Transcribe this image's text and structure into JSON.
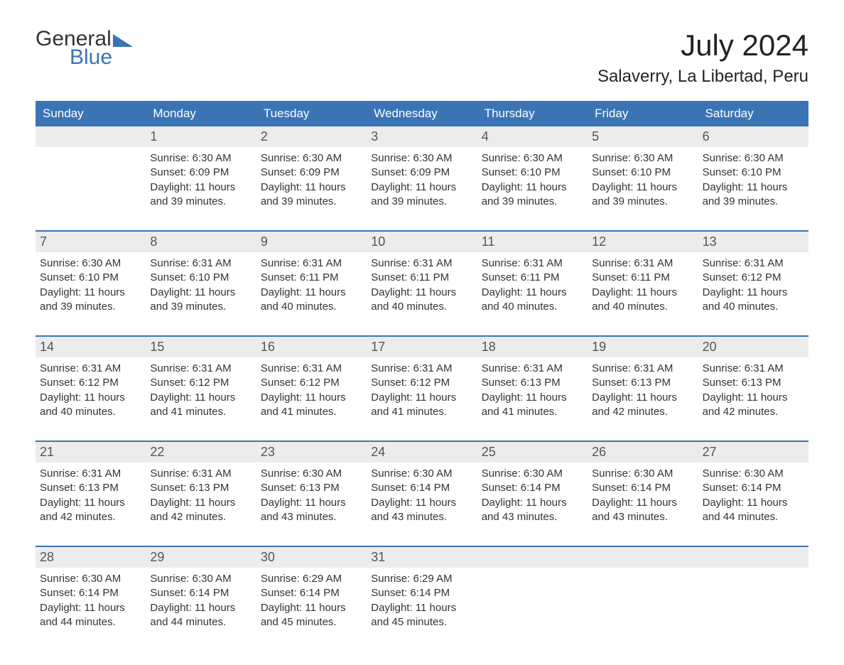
{
  "logo": {
    "line1": "General",
    "line2": "Blue"
  },
  "title": "July 2024",
  "location": "Salaverry, La Libertad, Peru",
  "colors": {
    "header_bg": "#3b74b5",
    "header_text": "#ffffff",
    "daynum_bg": "#ececec",
    "week_border": "#3b74b5",
    "body_text": "#333333"
  },
  "layout": {
    "columns": 7,
    "rows": 5
  },
  "weekdays": [
    "Sunday",
    "Monday",
    "Tuesday",
    "Wednesday",
    "Thursday",
    "Friday",
    "Saturday"
  ],
  "labels": {
    "sunrise": "Sunrise:",
    "sunset": "Sunset:",
    "daylight": "Daylight:"
  },
  "weeks": [
    [
      {
        "n": "",
        "empty": true
      },
      {
        "n": "1",
        "sunrise": "6:30 AM",
        "sunset": "6:09 PM",
        "daylight": "11 hours and 39 minutes."
      },
      {
        "n": "2",
        "sunrise": "6:30 AM",
        "sunset": "6:09 PM",
        "daylight": "11 hours and 39 minutes."
      },
      {
        "n": "3",
        "sunrise": "6:30 AM",
        "sunset": "6:09 PM",
        "daylight": "11 hours and 39 minutes."
      },
      {
        "n": "4",
        "sunrise": "6:30 AM",
        "sunset": "6:10 PM",
        "daylight": "11 hours and 39 minutes."
      },
      {
        "n": "5",
        "sunrise": "6:30 AM",
        "sunset": "6:10 PM",
        "daylight": "11 hours and 39 minutes."
      },
      {
        "n": "6",
        "sunrise": "6:30 AM",
        "sunset": "6:10 PM",
        "daylight": "11 hours and 39 minutes."
      }
    ],
    [
      {
        "n": "7",
        "sunrise": "6:30 AM",
        "sunset": "6:10 PM",
        "daylight": "11 hours and 39 minutes."
      },
      {
        "n": "8",
        "sunrise": "6:31 AM",
        "sunset": "6:10 PM",
        "daylight": "11 hours and 39 minutes."
      },
      {
        "n": "9",
        "sunrise": "6:31 AM",
        "sunset": "6:11 PM",
        "daylight": "11 hours and 40 minutes."
      },
      {
        "n": "10",
        "sunrise": "6:31 AM",
        "sunset": "6:11 PM",
        "daylight": "11 hours and 40 minutes."
      },
      {
        "n": "11",
        "sunrise": "6:31 AM",
        "sunset": "6:11 PM",
        "daylight": "11 hours and 40 minutes."
      },
      {
        "n": "12",
        "sunrise": "6:31 AM",
        "sunset": "6:11 PM",
        "daylight": "11 hours and 40 minutes."
      },
      {
        "n": "13",
        "sunrise": "6:31 AM",
        "sunset": "6:12 PM",
        "daylight": "11 hours and 40 minutes."
      }
    ],
    [
      {
        "n": "14",
        "sunrise": "6:31 AM",
        "sunset": "6:12 PM",
        "daylight": "11 hours and 40 minutes."
      },
      {
        "n": "15",
        "sunrise": "6:31 AM",
        "sunset": "6:12 PM",
        "daylight": "11 hours and 41 minutes."
      },
      {
        "n": "16",
        "sunrise": "6:31 AM",
        "sunset": "6:12 PM",
        "daylight": "11 hours and 41 minutes."
      },
      {
        "n": "17",
        "sunrise": "6:31 AM",
        "sunset": "6:12 PM",
        "daylight": "11 hours and 41 minutes."
      },
      {
        "n": "18",
        "sunrise": "6:31 AM",
        "sunset": "6:13 PM",
        "daylight": "11 hours and 41 minutes."
      },
      {
        "n": "19",
        "sunrise": "6:31 AM",
        "sunset": "6:13 PM",
        "daylight": "11 hours and 42 minutes."
      },
      {
        "n": "20",
        "sunrise": "6:31 AM",
        "sunset": "6:13 PM",
        "daylight": "11 hours and 42 minutes."
      }
    ],
    [
      {
        "n": "21",
        "sunrise": "6:31 AM",
        "sunset": "6:13 PM",
        "daylight": "11 hours and 42 minutes."
      },
      {
        "n": "22",
        "sunrise": "6:31 AM",
        "sunset": "6:13 PM",
        "daylight": "11 hours and 42 minutes."
      },
      {
        "n": "23",
        "sunrise": "6:30 AM",
        "sunset": "6:13 PM",
        "daylight": "11 hours and 43 minutes."
      },
      {
        "n": "24",
        "sunrise": "6:30 AM",
        "sunset": "6:14 PM",
        "daylight": "11 hours and 43 minutes."
      },
      {
        "n": "25",
        "sunrise": "6:30 AM",
        "sunset": "6:14 PM",
        "daylight": "11 hours and 43 minutes."
      },
      {
        "n": "26",
        "sunrise": "6:30 AM",
        "sunset": "6:14 PM",
        "daylight": "11 hours and 43 minutes."
      },
      {
        "n": "27",
        "sunrise": "6:30 AM",
        "sunset": "6:14 PM",
        "daylight": "11 hours and 44 minutes."
      }
    ],
    [
      {
        "n": "28",
        "sunrise": "6:30 AM",
        "sunset": "6:14 PM",
        "daylight": "11 hours and 44 minutes."
      },
      {
        "n": "29",
        "sunrise": "6:30 AM",
        "sunset": "6:14 PM",
        "daylight": "11 hours and 44 minutes."
      },
      {
        "n": "30",
        "sunrise": "6:29 AM",
        "sunset": "6:14 PM",
        "daylight": "11 hours and 45 minutes."
      },
      {
        "n": "31",
        "sunrise": "6:29 AM",
        "sunset": "6:14 PM",
        "daylight": "11 hours and 45 minutes."
      },
      {
        "n": "",
        "empty": true
      },
      {
        "n": "",
        "empty": true
      },
      {
        "n": "",
        "empty": true
      }
    ]
  ]
}
